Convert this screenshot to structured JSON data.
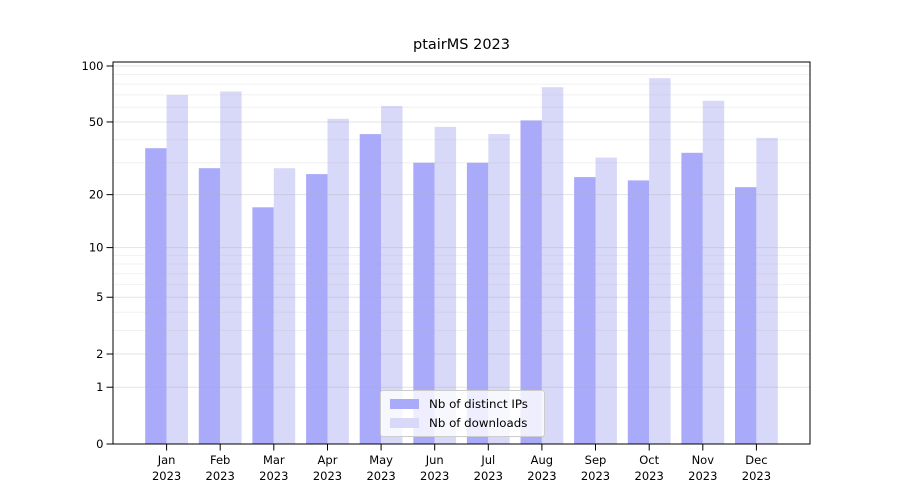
{
  "chart_data": {
    "type": "bar",
    "title": "ptairMS 2023",
    "year_label": "2023",
    "categories": [
      "Jan",
      "Feb",
      "Mar",
      "Apr",
      "May",
      "Jun",
      "Jul",
      "Aug",
      "Sep",
      "Oct",
      "Nov",
      "Dec"
    ],
    "series": [
      {
        "name": "Nb of distinct IPs",
        "color": "#aaaafa",
        "values": [
          36,
          28,
          17,
          26,
          43,
          30,
          30,
          51,
          25,
          24,
          34,
          22
        ]
      },
      {
        "name": "Nb of downloads",
        "color": "#d8d8f8",
        "values": [
          70,
          73,
          28,
          52,
          61,
          47,
          43,
          77,
          32,
          86,
          65,
          41
        ]
      }
    ],
    "yscale": "log1p",
    "ylim": [
      0,
      100
    ],
    "yticks": [
      0,
      1,
      2,
      5,
      10,
      20,
      50,
      100
    ],
    "minor_gridlines": [
      3,
      4,
      6,
      7,
      8,
      9,
      30,
      40,
      60,
      70,
      80,
      90
    ],
    "grid": true,
    "legend_position": "lower center",
    "axis_color": "#000000",
    "gridline_color": "#b0b0b8"
  }
}
